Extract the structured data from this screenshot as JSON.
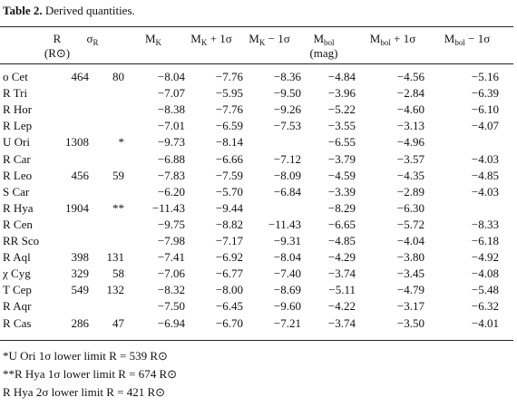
{
  "caption": {
    "label": "Table 2.",
    "text": "Derived quantities."
  },
  "table": {
    "headers": [
      {
        "symbol": "R",
        "note": "(R⊙)"
      },
      {
        "symbol": "σ",
        "subscript": "R"
      },
      {
        "symbol": "M",
        "subscript": "K"
      },
      {
        "symbol": "M",
        "subscript": "K",
        "suffix": " + 1σ"
      },
      {
        "symbol": "M",
        "subscript": "K",
        "suffix": " − 1σ"
      },
      {
        "symbol": "M",
        "subscript": "bol",
        "note": "(mag)"
      },
      {
        "symbol": "M",
        "subscript": "bol",
        "suffix": " + 1σ"
      },
      {
        "symbol": "M",
        "subscript": "bol",
        "suffix": " − 1σ"
      }
    ],
    "rows": [
      [
        "o Cet",
        "464",
        "80",
        "−8.04",
        "−7.76",
        "−8.36",
        "−4.84",
        "−4.56",
        "−5.16"
      ],
      [
        "R Tri",
        null,
        null,
        "−7.07",
        "−5.95",
        "−9.50",
        "−3.96",
        "−2.84",
        "−6.39"
      ],
      [
        "R Hor",
        null,
        null,
        "−8.38",
        "−7.76",
        "−9.26",
        "−5.22",
        "−4.60",
        "−6.10"
      ],
      [
        "R Lep",
        null,
        null,
        "−7.01",
        "−6.59",
        "−7.53",
        "−3.55",
        "−3.13",
        "−4.07"
      ],
      [
        "U Ori",
        "1308",
        "*",
        "−9.73",
        "−8.14",
        null,
        "−6.55",
        "−4.96",
        null
      ],
      [
        "R Car",
        null,
        null,
        "−6.88",
        "−6.66",
        "−7.12",
        "−3.79",
        "−3.57",
        "−4.03"
      ],
      [
        "R Leo",
        "456",
        "59",
        "−7.83",
        "−7.59",
        "−8.09",
        "−4.59",
        "−4.35",
        "−4.85"
      ],
      [
        "S Car",
        null,
        null,
        "−6.20",
        "−5.70",
        "−6.84",
        "−3.39",
        "−2.89",
        "−4.03"
      ],
      [
        "R Hya",
        "1904",
        "**",
        "−11.43",
        "−9.44",
        null,
        "−8.29",
        "−6.30",
        null
      ],
      [
        "R Cen",
        null,
        null,
        "−9.75",
        "−8.82",
        "−11.43",
        "−6.65",
        "−5.72",
        "−8.33"
      ],
      [
        "RR Sco",
        null,
        null,
        "−7.98",
        "−7.17",
        "−9.31",
        "−4.85",
        "−4.04",
        "−6.18"
      ],
      [
        "R Aql",
        "398",
        "131",
        "−7.41",
        "−6.92",
        "−8.04",
        "−4.29",
        "−3.80",
        "−4.92"
      ],
      [
        "χ Cyg",
        "329",
        "58",
        "−7.06",
        "−6.77",
        "−7.40",
        "−3.74",
        "−3.45",
        "−4.08"
      ],
      [
        "T Cep",
        "549",
        "132",
        "−8.32",
        "−8.00",
        "−8.69",
        "−5.11",
        "−4.79",
        "−5.48"
      ],
      [
        "R Aqr",
        null,
        null,
        "−7.50",
        "−6.45",
        "−9.60",
        "−4.22",
        "−3.17",
        "−6.32"
      ],
      [
        "R Cas",
        "286",
        "47",
        "−6.94",
        "−6.70",
        "−7.21",
        "−3.74",
        "−3.50",
        "−4.01"
      ]
    ]
  },
  "footnotes": [
    "*U Ori 1σ lower limit R = 539 R⊙",
    "**R Hya 1σ lower limit R = 674 R⊙",
    "R Hya 2σ lower limit R = 421 R⊙"
  ]
}
